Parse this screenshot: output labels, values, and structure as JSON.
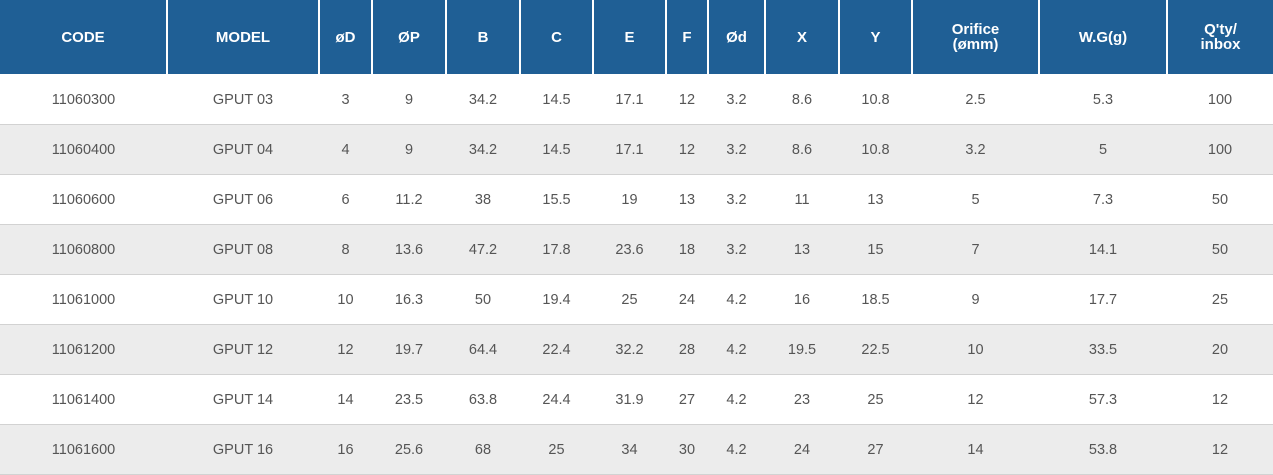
{
  "table": {
    "headers": [
      [
        "CODE",
        ""
      ],
      [
        "MODEL",
        ""
      ],
      [
        "øD",
        ""
      ],
      [
        "ØP",
        ""
      ],
      [
        "B",
        ""
      ],
      [
        "C",
        ""
      ],
      [
        "E",
        ""
      ],
      [
        "F",
        ""
      ],
      [
        "Ød",
        ""
      ],
      [
        "X",
        ""
      ],
      [
        "Y",
        ""
      ],
      [
        "Orifice",
        "(ømm)"
      ],
      [
        "W.G(g)",
        ""
      ],
      [
        "Q'ty/",
        "inbox"
      ]
    ],
    "rows": [
      [
        "11060300",
        "GPUT 03",
        "3",
        "9",
        "34.2",
        "14.5",
        "17.1",
        "12",
        "3.2",
        "8.6",
        "10.8",
        "2.5",
        "5.3",
        "100"
      ],
      [
        "11060400",
        "GPUT 04",
        "4",
        "9",
        "34.2",
        "14.5",
        "17.1",
        "12",
        "3.2",
        "8.6",
        "10.8",
        "3.2",
        "5",
        "100"
      ],
      [
        "11060600",
        "GPUT 06",
        "6",
        "11.2",
        "38",
        "15.5",
        "19",
        "13",
        "3.2",
        "11",
        "13",
        "5",
        "7.3",
        "50"
      ],
      [
        "11060800",
        "GPUT 08",
        "8",
        "13.6",
        "47.2",
        "17.8",
        "23.6",
        "18",
        "3.2",
        "13",
        "15",
        "7",
        "14.1",
        "50"
      ],
      [
        "11061000",
        "GPUT 10",
        "10",
        "16.3",
        "50",
        "19.4",
        "25",
        "24",
        "4.2",
        "16",
        "18.5",
        "9",
        "17.7",
        "25"
      ],
      [
        "11061200",
        "GPUT 12",
        "12",
        "19.7",
        "64.4",
        "22.4",
        "32.2",
        "28",
        "4.2",
        "19.5",
        "22.5",
        "10",
        "33.5",
        "20"
      ],
      [
        "11061400",
        "GPUT 14",
        "14",
        "23.5",
        "63.8",
        "24.4",
        "31.9",
        "27",
        "4.2",
        "23",
        "25",
        "12",
        "57.3",
        "12"
      ],
      [
        "11061600",
        "GPUT 16",
        "16",
        "25.6",
        "68",
        "25",
        "34",
        "30",
        "4.2",
        "24",
        "27",
        "14",
        "53.8",
        "12"
      ]
    ]
  },
  "colors": {
    "header_bg": "#1f5f95",
    "header_text": "#ffffff",
    "row_alt_bg": "#ececec",
    "cell_text": "#555555"
  }
}
